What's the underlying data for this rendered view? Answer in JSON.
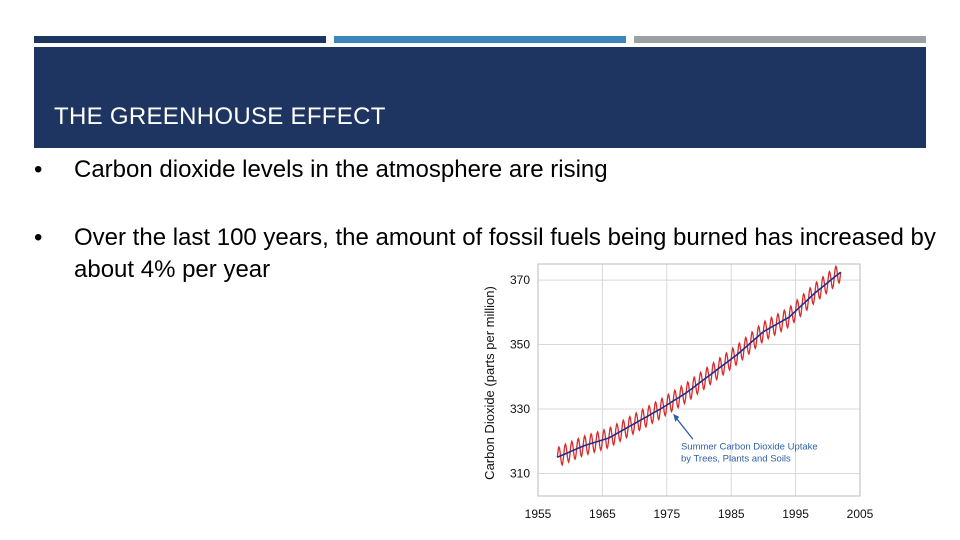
{
  "slide": {
    "title": "THE GREENHOUSE EFFECT",
    "bullets": [
      {
        "marker": "•",
        "text": "Carbon dioxide levels in the atmosphere are rising"
      },
      {
        "marker": "•",
        "text": "Over the last 100 years, the amount of fossil fuels being burned has increased by about 4% per year"
      }
    ],
    "colors": {
      "header": "#1e3461",
      "accent_blue": "#3f86b8",
      "accent_gray": "#9c9fa3"
    }
  },
  "chart_data": {
    "type": "line",
    "ylabel": "Carbon Dioxide (parts per million)",
    "xlabel": "",
    "xlim": [
      1955,
      2005
    ],
    "ylim": [
      303,
      375
    ],
    "x_ticks": [
      1955,
      1965,
      1975,
      1985,
      1995,
      2005
    ],
    "y_ticks": [
      310,
      330,
      350,
      370
    ],
    "grid": true,
    "series": [
      {
        "color": "#d62b2b",
        "style": "monthly-seasonal",
        "seasonal_amplitude_ppm": 3,
        "x": [
          1958,
          1962,
          1966,
          1970,
          1974,
          1978,
          1982,
          1986,
          1990,
          1994,
          1998,
          2002
        ],
        "y": [
          315,
          318.5,
          321,
          325.5,
          330,
          335,
          341,
          347,
          354,
          358.5,
          366,
          372.5
        ]
      },
      {
        "color": "#1f2e8f",
        "style": "annual-trend",
        "x": [
          1958,
          1962,
          1966,
          1970,
          1974,
          1978,
          1982,
          1986,
          1990,
          1994,
          1998,
          2002
        ],
        "y": [
          315,
          318.5,
          321,
          325.5,
          330,
          335,
          341,
          347,
          354,
          358.5,
          366,
          372.5
        ]
      }
    ],
    "annotations": [
      {
        "lines": [
          "Summer Carbon Dioxide Uptake",
          "by Trees, Plants and Soils"
        ],
        "points_to": {
          "x": 1976,
          "y": 328.5
        }
      }
    ]
  }
}
